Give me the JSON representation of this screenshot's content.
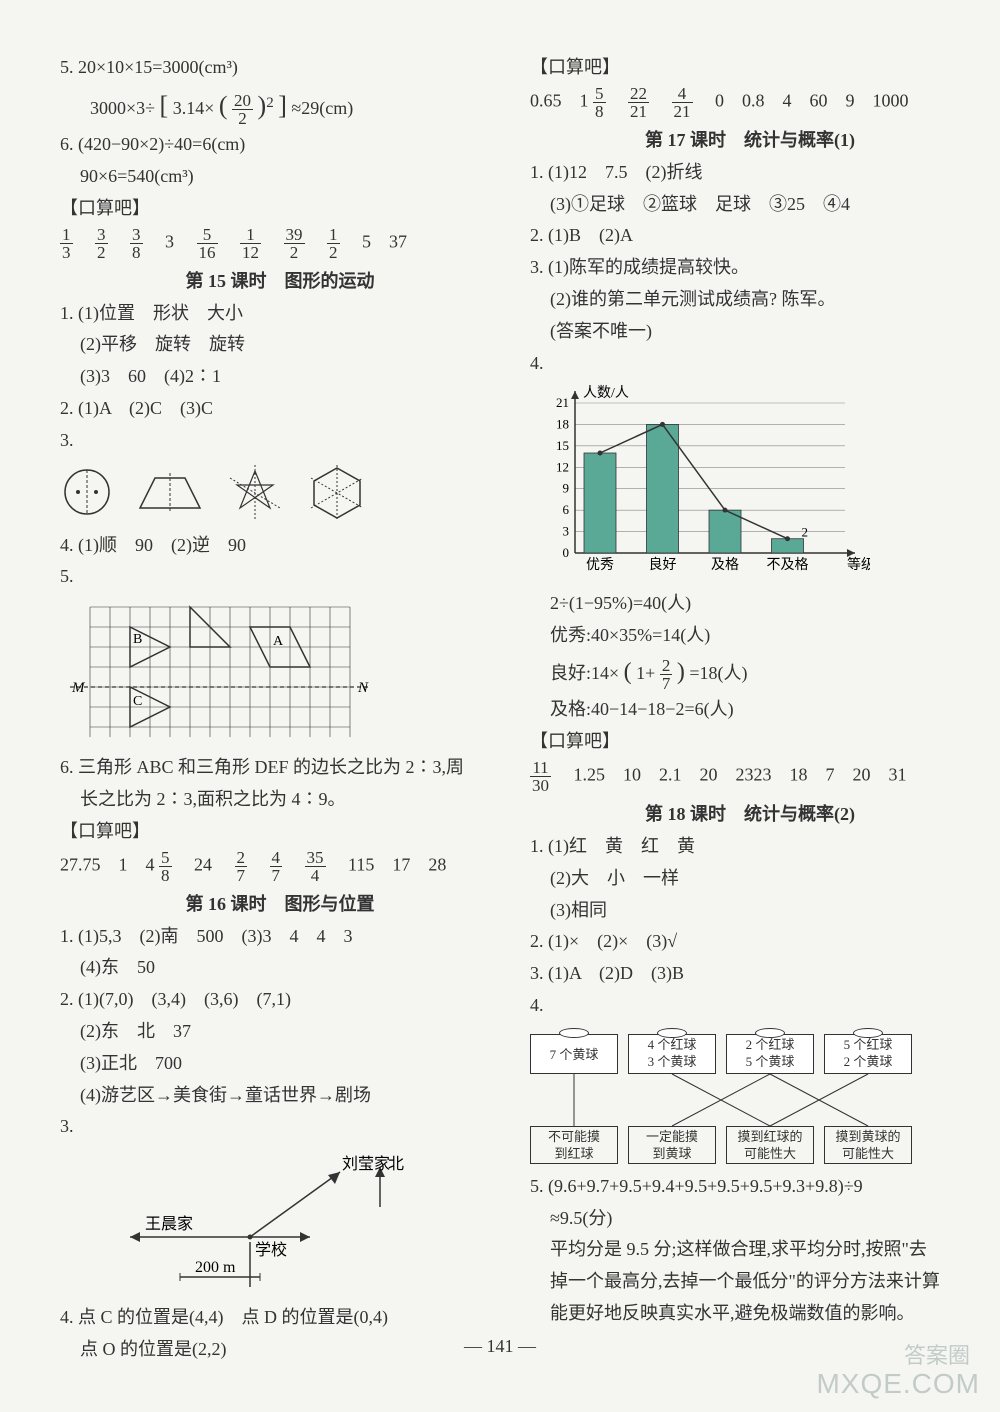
{
  "left": {
    "q5_a": "5. 20×10×15=3000(cm³)",
    "q5_b_prefix": "3000×3÷",
    "q5_b_inner": "3.14×",
    "q5_b_frac_num": "20",
    "q5_b_frac_den": "2",
    "q5_b_suffix": "≈29(cm)",
    "q6_a": "6. (420−90×2)÷40=6(cm)",
    "q6_b": "90×6=540(cm³)",
    "kousuan_label": "【口算吧】",
    "ks1": {
      "fracs": [
        {
          "n": "1",
          "d": "3"
        },
        {
          "n": "3",
          "d": "2"
        },
        {
          "n": "3",
          "d": "8"
        }
      ],
      "mid1": "3",
      "fracs2": [
        {
          "n": "5",
          "d": "16"
        },
        {
          "n": "1",
          "d": "12"
        },
        {
          "n": "39",
          "d": "2"
        },
        {
          "n": "1",
          "d": "2"
        }
      ],
      "tail": "5　37"
    },
    "h15": "第 15 课时　图形的运动",
    "l15_1_1": "1. (1)位置　形状　大小",
    "l15_1_2": "(2)平移　旋转　旋转",
    "l15_1_3": "(3)3　60　(4)2∶1",
    "l15_2": "2. (1)A　(2)C　(3)C",
    "l15_3": "3.",
    "l15_4": "4. (1)顺　90　(2)逆　90",
    "l15_5": "5.",
    "grid_labels": {
      "M": "M",
      "N": "N",
      "A": "A",
      "B": "B",
      "C": "C"
    },
    "l15_6a": "6. 三角形 ABC 和三角形 DEF 的边长之比为 2∶3,周",
    "l15_6b": "长之比为 2∶3,面积之比为 4∶9。",
    "ks2_prefix": "27.75　1　4",
    "ks2_frac1": {
      "n": "5",
      "d": "8"
    },
    "ks2_mid": "　24　",
    "ks2_frac2": {
      "n": "2",
      "d": "7"
    },
    "ks2_frac3": {
      "n": "4",
      "d": "7"
    },
    "ks2_frac4": {
      "n": "35",
      "d": "4"
    },
    "ks2_tail": "　115　17　28",
    "h16": "第 16 课时　图形与位置",
    "l16_1_1": "1. (1)5,3　(2)南　500　(3)3　4　4　3",
    "l16_1_2": "(4)东　50",
    "l16_2_1": "2. (1)(7,0)　(3,4)　(3,6)　(7,1)",
    "l16_2_2": "(2)东　北　37",
    "l16_2_3": "(3)正北　700",
    "l16_2_4": "(4)游艺区→美食街→童话世界→剧场",
    "l16_3": "3.",
    "diag_labels": {
      "liu": "刘莹家",
      "bei": "北",
      "wang": "王晨家",
      "xuexiao": "学校",
      "scale": "200 m"
    },
    "l16_4a": "4. 点 C 的位置是(4,4)　点 D 的位置是(0,4)",
    "l16_4b": "点 O 的位置是(2,2)"
  },
  "right": {
    "kousuan_label": "【口算吧】",
    "ks3_prefix": "0.65　1",
    "ks3_frac1": {
      "n": "5",
      "d": "8"
    },
    "ks3_frac2": {
      "n": "22",
      "d": "21"
    },
    "ks3_frac3": {
      "n": "4",
      "d": "21"
    },
    "ks3_tail": "　0　0.8　4　60　9　1000",
    "h17": "第 17 课时　统计与概率(1)",
    "l17_1_1": "1. (1)12　7.5　(2)折线",
    "l17_1_2": "(3)①足球　②篮球　足球　③25　④4",
    "l17_2": "2. (1)B　(2)A",
    "l17_3_1": "3. (1)陈军的成绩提高较快。",
    "l17_3_2": "(2)谁的第二单元测试成绩高? 陈军。",
    "l17_3_3": "(答案不唯一)",
    "l17_4": "4.",
    "chart": {
      "ylabel": "人数/人",
      "xlabel": "等级",
      "yticks": [
        "0",
        "3",
        "6",
        "9",
        "12",
        "15",
        "18",
        "21"
      ],
      "categories": [
        "优秀",
        "良好",
        "及格",
        "不及格"
      ],
      "values": [
        14,
        18,
        6,
        2
      ],
      "bar_color": "#5aa896",
      "annotate": "2",
      "grid_color": "#888",
      "bg": "#f5f6f2"
    },
    "l17_calc1": "2÷(1−95%)=40(人)",
    "l17_calc2": "优秀:40×35%=14(人)",
    "l17_calc3_prefix": "良好:14×",
    "l17_calc3_inner": "1+",
    "l17_calc3_frac": {
      "n": "2",
      "d": "7"
    },
    "l17_calc3_suffix": "=18(人)",
    "l17_calc4": "及格:40−14−18−2=6(人)",
    "ks4_frac": {
      "n": "11",
      "d": "30"
    },
    "ks4_tail": "　1.25　10　2.1　20　2323　18　7　20　31",
    "h18": "第 18 课时　统计与概率(2)",
    "l18_1_1": "1. (1)红　黄　红　黄",
    "l18_1_2": "(2)大　小　一样",
    "l18_1_3": "(3)相同",
    "l18_2": "2. (1)×　(2)×　(3)√",
    "l18_3": "3. (1)A　(2)D　(3)B",
    "l18_4": "4.",
    "boxes": {
      "top": [
        "7 个黄球",
        "4 个红球\n3 个黄球",
        "2 个红球\n5 个黄球",
        "5 个红球\n2 个黄球"
      ],
      "bottom": [
        "不可能摸\n到红球",
        "一定能摸\n到黄球",
        "摸到红球的\n可能性大",
        "摸到黄球的\n可能性大"
      ]
    },
    "l18_5a": "5. (9.6+9.7+9.5+9.4+9.5+9.5+9.5+9.3+9.8)÷9",
    "l18_5b": "≈9.5(分)",
    "l18_5c": "平均分是 9.5 分;这样做合理,求平均分时,按照\"去",
    "l18_5d": "掉一个最高分,去掉一个最低分\"的评分方法来计算",
    "l18_5e": "能更好地反映真实水平,避免极端数值的影响。"
  },
  "footer": "— 141 —",
  "watermark_cn": "答案圈",
  "watermark_url": "MXQE.COM"
}
